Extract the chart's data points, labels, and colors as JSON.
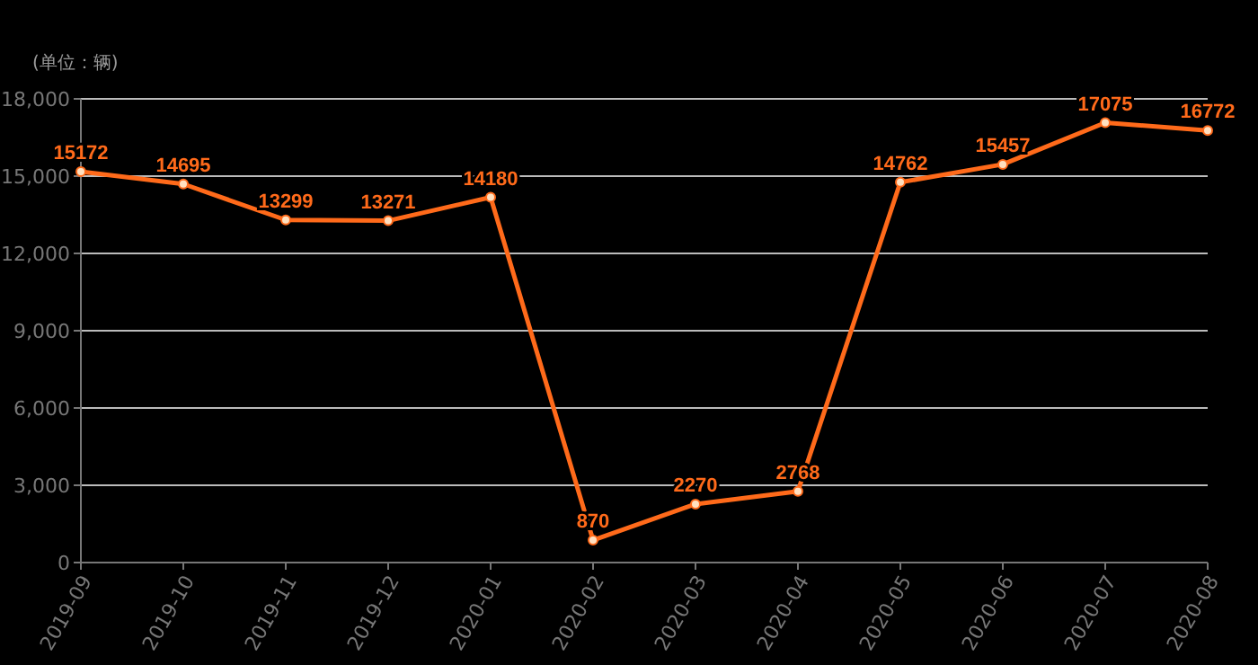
{
  "chart_data": {
    "type": "line",
    "ylabel": "(单位：辆)",
    "categories": [
      "2019-09",
      "2019-10",
      "2019-11",
      "2019-12",
      "2020-01",
      "2020-02",
      "2020-03",
      "2020-04",
      "2020-05",
      "2020-06",
      "2020-07",
      "2020-08"
    ],
    "series": [
      {
        "color": "#ff6a1a",
        "values": [
          15172,
          14695,
          13299,
          13271,
          14180,
          870,
          2270,
          2768,
          14762,
          15457,
          17075,
          16772
        ]
      }
    ],
    "ylim": [
      0,
      18000
    ],
    "yticks": [
      {
        "value": 0,
        "label": "0"
      },
      {
        "value": 3000,
        "label": "3,000"
      },
      {
        "value": 6000,
        "label": "6,000"
      },
      {
        "value": 9000,
        "label": "9,000"
      },
      {
        "value": 12000,
        "label": "12,000"
      },
      {
        "value": 15000,
        "label": "15,000"
      },
      {
        "value": 18000,
        "label": "18,000"
      }
    ],
    "grid": "y",
    "data_labels": true,
    "marker": "circle",
    "line_style": "solid"
  }
}
